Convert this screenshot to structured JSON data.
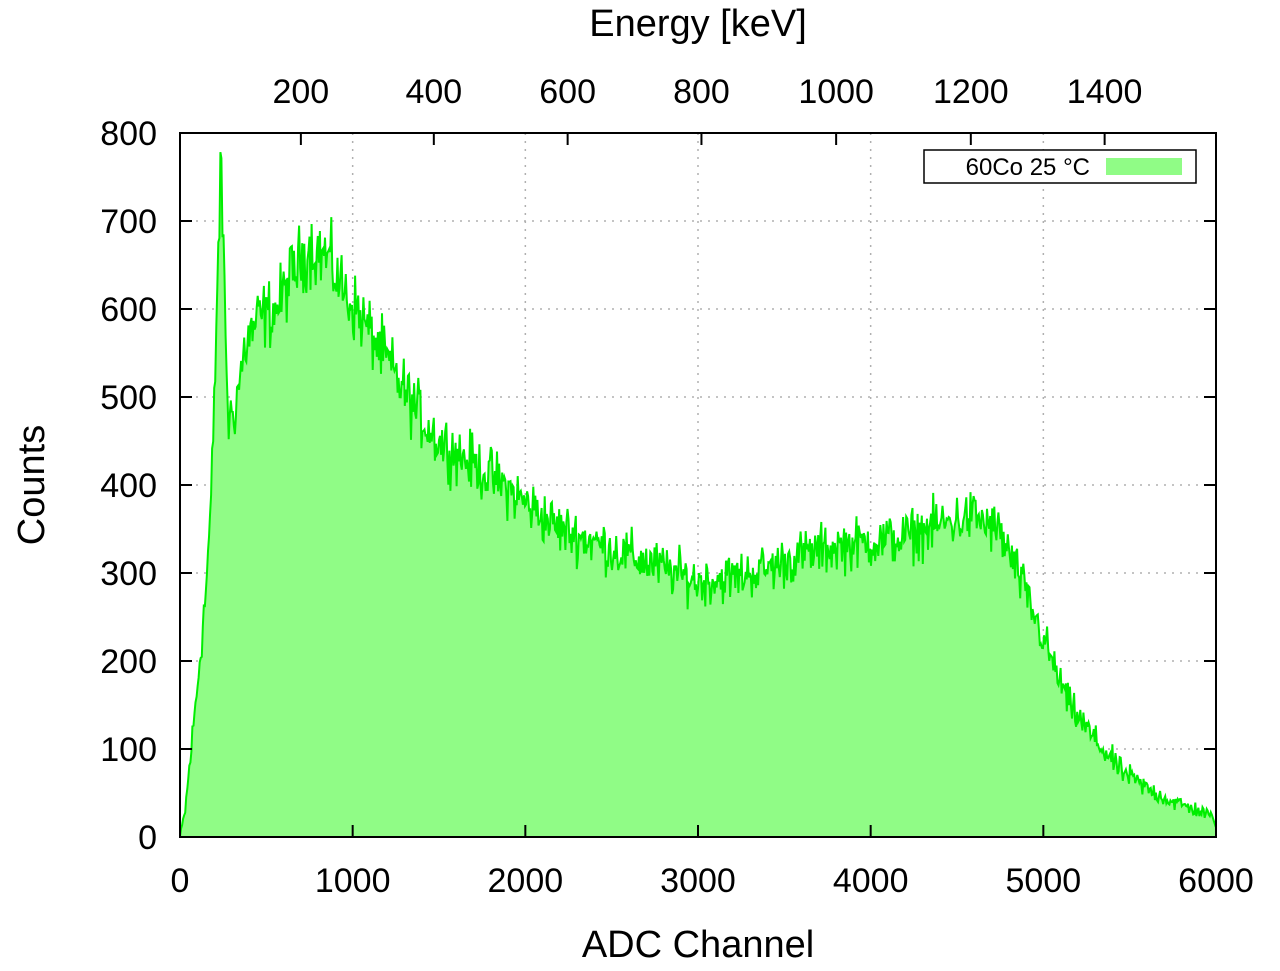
{
  "chart_data": {
    "type": "area",
    "title": "",
    "xlabel": "ADC Channel",
    "ylabel": "Counts",
    "x2label": "Energy [keV]",
    "xlim": [
      0,
      6000
    ],
    "ylim": [
      0,
      800
    ],
    "xticks": [
      "0",
      "1000",
      "2000",
      "3000",
      "4000",
      "5000",
      "6000"
    ],
    "yticks": [
      "0",
      "100",
      "200",
      "300",
      "400",
      "500",
      "600",
      "700",
      "800"
    ],
    "x2ticks": [
      {
        "label": "200",
        "channel": 700
      },
      {
        "label": "400",
        "channel": 1470
      },
      {
        "label": "600",
        "channel": 2245
      },
      {
        "label": "800",
        "channel": 3020
      },
      {
        "label": "1000",
        "channel": 3800
      },
      {
        "label": "1200",
        "channel": 4580
      },
      {
        "label": "1400",
        "channel": 5355
      }
    ],
    "grid": true,
    "legend_position": "top-right",
    "series": [
      {
        "name": "60Co 25 °C",
        "color": "#00ee00",
        "fill": "#90fc86",
        "envelope": [
          [
            0,
            0
          ],
          [
            30,
            30
          ],
          [
            60,
            90
          ],
          [
            100,
            170
          ],
          [
            150,
            280
          ],
          [
            180,
            380
          ],
          [
            200,
            500
          ],
          [
            220,
            660
          ],
          [
            240,
            760
          ],
          [
            260,
            600
          ],
          [
            280,
            470
          ],
          [
            320,
            490
          ],
          [
            380,
            560
          ],
          [
            460,
            590
          ],
          [
            560,
            600
          ],
          [
            650,
            640
          ],
          [
            750,
            670
          ],
          [
            850,
            660
          ],
          [
            950,
            620
          ],
          [
            1050,
            590
          ],
          [
            1200,
            540
          ],
          [
            1350,
            490
          ],
          [
            1500,
            450
          ],
          [
            1650,
            430
          ],
          [
            1800,
            410
          ],
          [
            2000,
            380
          ],
          [
            2200,
            350
          ],
          [
            2400,
            335
          ],
          [
            2600,
            320
          ],
          [
            2800,
            305
          ],
          [
            3000,
            290
          ],
          [
            3200,
            295
          ],
          [
            3400,
            305
          ],
          [
            3600,
            320
          ],
          [
            3800,
            330
          ],
          [
            4000,
            335
          ],
          [
            4200,
            340
          ],
          [
            4400,
            355
          ],
          [
            4600,
            365
          ],
          [
            4750,
            345
          ],
          [
            4850,
            300
          ],
          [
            4950,
            250
          ],
          [
            5050,
            200
          ],
          [
            5150,
            150
          ],
          [
            5300,
            110
          ],
          [
            5450,
            75
          ],
          [
            5600,
            55
          ],
          [
            5750,
            40
          ],
          [
            5900,
            30
          ],
          [
            6000,
            20
          ]
        ]
      }
    ]
  }
}
